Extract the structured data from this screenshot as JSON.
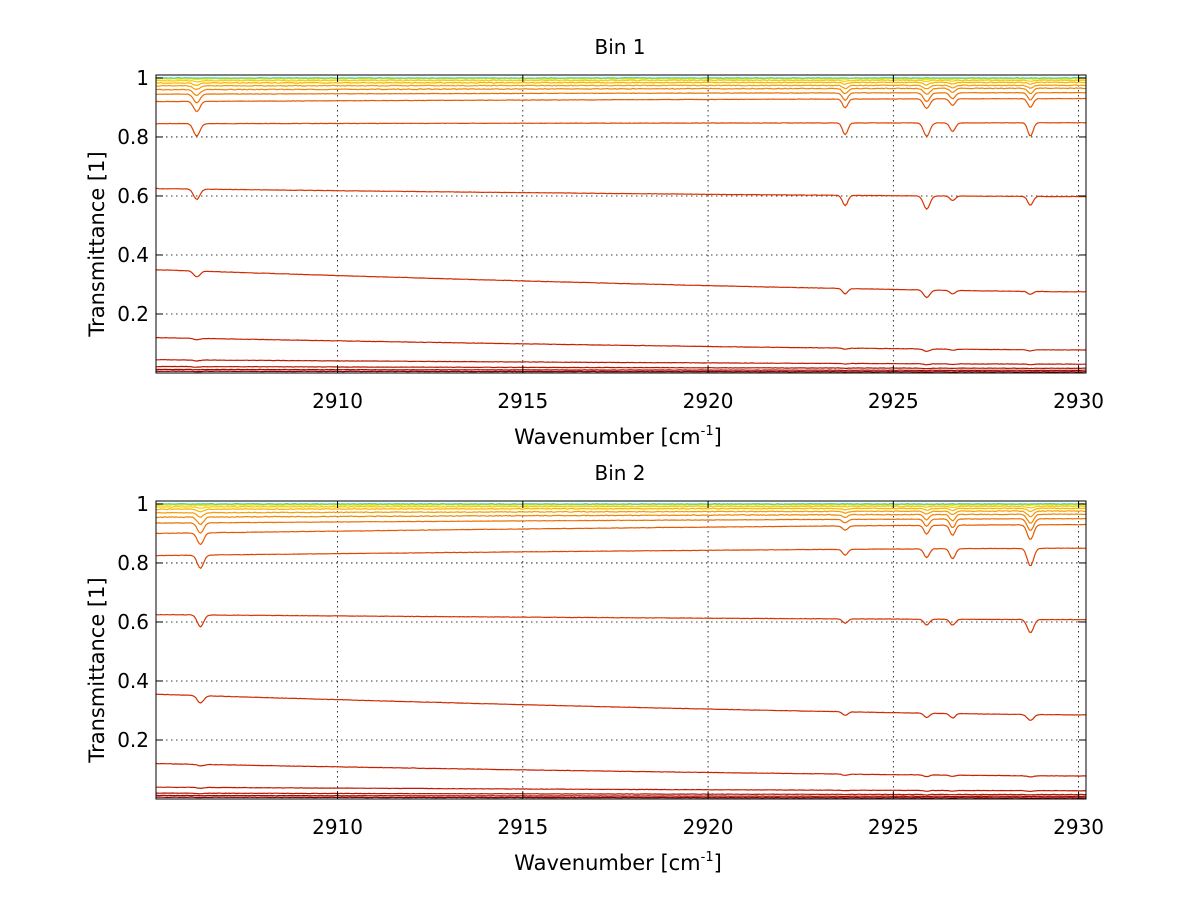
{
  "chart_data": [
    {
      "type": "line",
      "title": "Bin 1",
      "xlabel": "Wavenumber [cm",
      "xlabel_sup": "-1",
      "xlabel_suffix": "]",
      "ylabel": "Transmittance [1]",
      "xlim": [
        2905.1,
        2930.2
      ],
      "ylim": [
        0.0,
        1.01
      ],
      "xticks": [
        2910,
        2915,
        2920,
        2925,
        2930
      ],
      "yticks": [
        0.2,
        0.4,
        0.6,
        0.8,
        1
      ],
      "ytick_labels": [
        "0.2",
        "0.4",
        "0.6",
        "0.8",
        "1"
      ],
      "grid": true,
      "absorption_lines": [
        {
          "x": 2906.2,
          "width": 0.12
        },
        {
          "x": 2923.7,
          "width": 0.1
        },
        {
          "x": 2925.9,
          "width": 0.12
        },
        {
          "x": 2926.6,
          "width": 0.1
        },
        {
          "x": 2928.7,
          "width": 0.1
        }
      ],
      "series": [
        {
          "color": "#8b0000",
          "start": 0.006,
          "end": 0.004,
          "depth": [
            0.001,
            0.001,
            0.001,
            0.001,
            0.001
          ]
        },
        {
          "color": "#a00a00",
          "start": 0.012,
          "end": 0.009,
          "depth": [
            0.001,
            0.001,
            0.001,
            0.001,
            0.001
          ]
        },
        {
          "color": "#b41400",
          "start": 0.022,
          "end": 0.016,
          "depth": [
            0.002,
            0.001,
            0.002,
            0.001,
            0.001
          ]
        },
        {
          "color": "#c01800",
          "start": 0.045,
          "end": 0.03,
          "depth": [
            0.003,
            0.002,
            0.003,
            0.002,
            0.002
          ]
        },
        {
          "color": "#c82000",
          "start": 0.12,
          "end": 0.078,
          "depth": [
            0.005,
            0.004,
            0.008,
            0.004,
            0.004
          ]
        },
        {
          "color": "#d02a00",
          "start": 0.35,
          "end": 0.275,
          "depth": [
            0.02,
            0.018,
            0.025,
            0.012,
            0.01
          ]
        },
        {
          "color": "#d83400",
          "start": 0.625,
          "end": 0.598,
          "depth": [
            0.035,
            0.035,
            0.045,
            0.015,
            0.03
          ]
        },
        {
          "color": "#e04400",
          "start": 0.845,
          "end": 0.848,
          "depth": [
            0.042,
            0.04,
            0.045,
            0.03,
            0.045
          ]
        },
        {
          "color": "#e65a00",
          "start": 0.92,
          "end": 0.93,
          "depth": [
            0.035,
            0.03,
            0.032,
            0.022,
            0.03
          ]
        },
        {
          "color": "#ec7000",
          "start": 0.945,
          "end": 0.95,
          "depth": [
            0.03,
            0.025,
            0.03,
            0.02,
            0.025
          ]
        },
        {
          "color": "#f08600",
          "start": 0.96,
          "end": 0.965,
          "depth": [
            0.02,
            0.018,
            0.02,
            0.014,
            0.018
          ]
        },
        {
          "color": "#f49c00",
          "start": 0.973,
          "end": 0.975,
          "depth": [
            0.012,
            0.01,
            0.012,
            0.008,
            0.01
          ]
        },
        {
          "color": "#f8b200",
          "start": 0.983,
          "end": 0.985,
          "depth": [
            0.008,
            0.006,
            0.008,
            0.005,
            0.006
          ]
        },
        {
          "color": "#fcc800",
          "start": 0.991,
          "end": 0.992,
          "depth": [
            0.004,
            0.003,
            0.004,
            0.003,
            0.003
          ]
        },
        {
          "color": "#ffe000",
          "start": 0.997,
          "end": 0.997,
          "depth": [
            0.002,
            0.001,
            0.002,
            0.001,
            0.001
          ]
        },
        {
          "color": "#e8f000",
          "start": 0.999,
          "end": 0.999,
          "depth": [
            0.001,
            0.001,
            0.001,
            0.001,
            0.001
          ]
        },
        {
          "color": "#40d0c0",
          "start": 1.0,
          "end": 1.0,
          "depth": [
            0,
            0,
            0,
            0,
            0
          ]
        }
      ]
    },
    {
      "type": "line",
      "title": "Bin 2",
      "xlabel": "Wavenumber [cm",
      "xlabel_sup": "-1",
      "xlabel_suffix": "]",
      "ylabel": "Transmittance [1]",
      "xlim": [
        2905.1,
        2930.2
      ],
      "ylim": [
        0.0,
        1.01
      ],
      "xticks": [
        2910,
        2915,
        2920,
        2925,
        2930
      ],
      "yticks": [
        0.2,
        0.4,
        0.6,
        0.8,
        1
      ],
      "ytick_labels": [
        "0.2",
        "0.4",
        "0.6",
        "0.8",
        "1"
      ],
      "grid": true,
      "absorption_lines": [
        {
          "x": 2906.3,
          "width": 0.12
        },
        {
          "x": 2923.7,
          "width": 0.1
        },
        {
          "x": 2925.9,
          "width": 0.1
        },
        {
          "x": 2926.6,
          "width": 0.1
        },
        {
          "x": 2928.7,
          "width": 0.12
        }
      ],
      "series": [
        {
          "color": "#8b0000",
          "start": 0.006,
          "end": 0.004,
          "depth": [
            0.001,
            0.001,
            0.001,
            0.001,
            0.001
          ]
        },
        {
          "color": "#a00a00",
          "start": 0.012,
          "end": 0.009,
          "depth": [
            0.001,
            0.001,
            0.001,
            0.001,
            0.001
          ]
        },
        {
          "color": "#b41400",
          "start": 0.02,
          "end": 0.015,
          "depth": [
            0.002,
            0.001,
            0.002,
            0.001,
            0.001
          ]
        },
        {
          "color": "#c01800",
          "start": 0.04,
          "end": 0.028,
          "depth": [
            0.003,
            0.002,
            0.003,
            0.002,
            0.002
          ]
        },
        {
          "color": "#c82000",
          "start": 0.12,
          "end": 0.078,
          "depth": [
            0.005,
            0.004,
            0.006,
            0.004,
            0.004
          ]
        },
        {
          "color": "#d02a00",
          "start": 0.355,
          "end": 0.285,
          "depth": [
            0.025,
            0.012,
            0.015,
            0.015,
            0.02
          ]
        },
        {
          "color": "#d83400",
          "start": 0.625,
          "end": 0.608,
          "depth": [
            0.04,
            0.015,
            0.02,
            0.02,
            0.045
          ]
        },
        {
          "color": "#e04400",
          "start": 0.825,
          "end": 0.85,
          "depth": [
            0.045,
            0.02,
            0.03,
            0.035,
            0.06
          ]
        },
        {
          "color": "#e65a00",
          "start": 0.9,
          "end": 0.93,
          "depth": [
            0.04,
            0.015,
            0.03,
            0.035,
            0.05
          ]
        },
        {
          "color": "#ec7000",
          "start": 0.935,
          "end": 0.95,
          "depth": [
            0.035,
            0.012,
            0.025,
            0.03,
            0.04
          ]
        },
        {
          "color": "#f08600",
          "start": 0.955,
          "end": 0.965,
          "depth": [
            0.025,
            0.01,
            0.018,
            0.022,
            0.03
          ]
        },
        {
          "color": "#f49c00",
          "start": 0.97,
          "end": 0.976,
          "depth": [
            0.015,
            0.006,
            0.01,
            0.012,
            0.018
          ]
        },
        {
          "color": "#f8b200",
          "start": 0.982,
          "end": 0.985,
          "depth": [
            0.009,
            0.004,
            0.006,
            0.007,
            0.01
          ]
        },
        {
          "color": "#fcc800",
          "start": 0.99,
          "end": 0.992,
          "depth": [
            0.005,
            0.002,
            0.003,
            0.004,
            0.005
          ]
        },
        {
          "color": "#ffe000",
          "start": 0.996,
          "end": 0.997,
          "depth": [
            0.002,
            0.001,
            0.001,
            0.002,
            0.002
          ]
        },
        {
          "color": "#e8f000",
          "start": 0.999,
          "end": 0.999,
          "depth": [
            0.001,
            0.001,
            0.001,
            0.001,
            0.001
          ]
        },
        {
          "color": "#40d0c0",
          "start": 1.0,
          "end": 1.0,
          "depth": [
            0,
            0,
            0,
            0,
            0
          ]
        }
      ]
    }
  ]
}
